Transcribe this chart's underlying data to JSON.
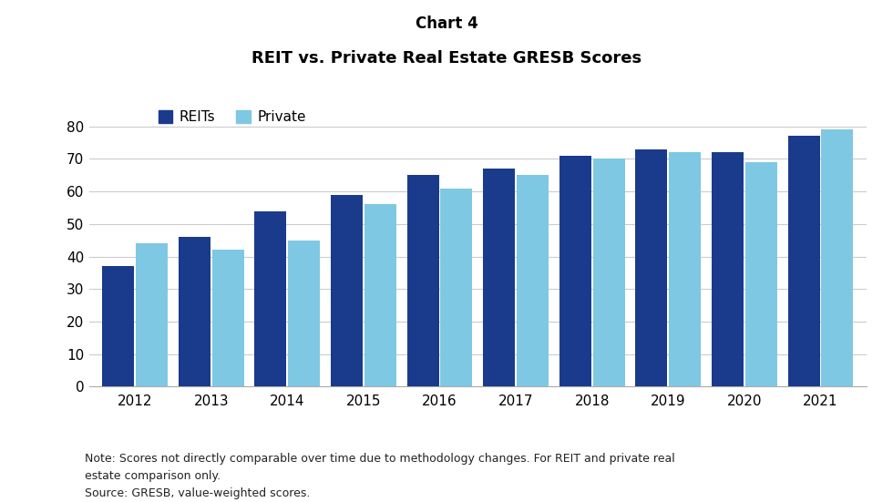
{
  "title_top": "Chart 4",
  "title_main": "REIT vs. Private Real Estate GRESB Scores",
  "years": [
    2012,
    2013,
    2014,
    2015,
    2016,
    2017,
    2018,
    2019,
    2020,
    2021
  ],
  "reits": [
    37,
    46,
    54,
    59,
    65,
    67,
    71,
    73,
    72,
    77
  ],
  "private": [
    44,
    42,
    45,
    56,
    61,
    65,
    70,
    72,
    69,
    79
  ],
  "reit_color": "#1a3a8c",
  "private_color": "#7ec8e3",
  "ylim": [
    0,
    88
  ],
  "yticks": [
    0,
    10,
    20,
    30,
    40,
    50,
    60,
    70,
    80
  ],
  "legend_labels": [
    "REITs",
    "Private"
  ],
  "footnote": "Note: Scores not directly comparable over time due to methodology changes. For REIT and private real\nestate comparison only.\nSource: GRESB, value-weighted scores.",
  "background_color": "#ffffff"
}
